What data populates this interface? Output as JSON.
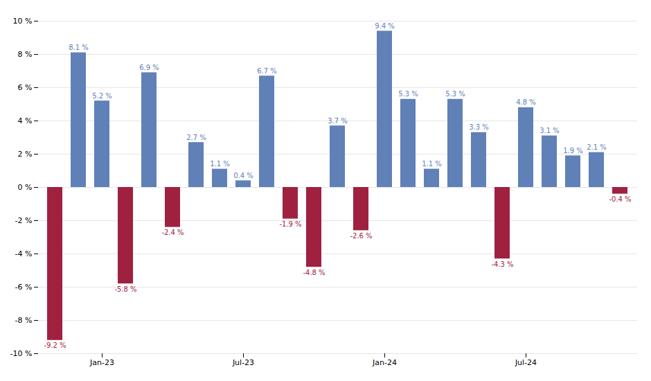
{
  "chart_data": {
    "type": "bar",
    "categories": [
      null,
      null,
      "Jan-23",
      null,
      null,
      null,
      null,
      null,
      "Jul-23",
      null,
      null,
      null,
      null,
      null,
      "Jan-24",
      null,
      null,
      null,
      null,
      null,
      "Jul-24",
      null,
      null,
      null,
      null
    ],
    "values": [
      -9.2,
      8.1,
      5.2,
      -5.8,
      6.9,
      -2.4,
      2.7,
      1.1,
      0.4,
      6.7,
      -1.9,
      -4.8,
      3.7,
      -2.6,
      9.4,
      5.3,
      1.1,
      5.3,
      3.3,
      -4.3,
      4.8,
      3.1,
      1.9,
      2.1,
      -0.4
    ],
    "value_labels": [
      "-9.2 %",
      "8.1 %",
      "5.2 %",
      "-5.8 %",
      "6.9 %",
      "-2.4 %",
      "2.7 %",
      "1.1 %",
      "0.4 %",
      "6.7 %",
      "-1.9 %",
      "-4.8 %",
      "3.7 %",
      "-2.6 %",
      "9.4 %",
      "5.3 %",
      "1.1 %",
      "5.3 %",
      "3.3 %",
      "-4.3 %",
      "4.8 %",
      "3.1 %",
      "1.9 %",
      "2.1 %",
      "-0.4 %"
    ],
    "colors": [
      "#a02040",
      "#6080b8",
      "#6080b8",
      "#a02040",
      "#6080b8",
      "#a02040",
      "#6080b8",
      "#6080b8",
      "#6080b8",
      "#6080b8",
      "#a02040",
      "#a02040",
      "#6080b8",
      "#a02040",
      "#6080b8",
      "#6080b8",
      "#6080b8",
      "#6080b8",
      "#6080b8",
      "#a02040",
      "#6080b8",
      "#6080b8",
      "#6080b8",
      "#6080b8",
      "#a02040"
    ],
    "ylim": [
      -10,
      10
    ],
    "yticks": [
      {
        "value": -10,
        "label": "-10 %"
      },
      {
        "value": -8,
        "label": "-8 %"
      },
      {
        "value": -6,
        "label": "-6 %"
      },
      {
        "value": -4,
        "label": "-4 %"
      },
      {
        "value": -2,
        "label": "-2 %"
      },
      {
        "value": 0,
        "label": "0 %"
      },
      {
        "value": 2,
        "label": "2 %"
      },
      {
        "value": 4,
        "label": "4 %"
      },
      {
        "value": 6,
        "label": "6 %"
      },
      {
        "value": 8,
        "label": "8 %"
      },
      {
        "value": 10,
        "label": "10 %"
      }
    ],
    "grid": true,
    "data_labels": true
  }
}
